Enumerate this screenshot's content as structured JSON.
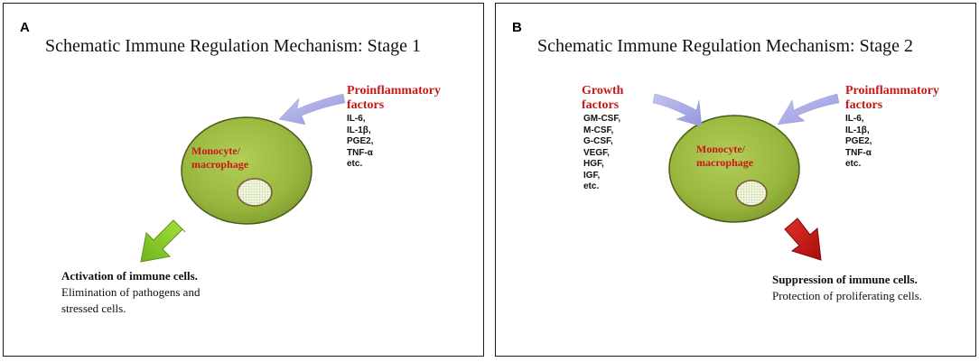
{
  "panels": [
    {
      "letter": "A",
      "title": "Schematic Immune Regulation Mechanism: Stage 1",
      "cell_label": {
        "main": "Monocyte",
        "slash": "/",
        "line2": "macrophage"
      },
      "proinflammatory": {
        "heading": [
          "Proinflammatory",
          "factors"
        ],
        "items": [
          "IL-6,",
          "IL-1β,",
          "PGE2,",
          "TNF-α",
          "etc."
        ]
      },
      "outcome": {
        "bold": "Activation of immune cells.",
        "lines": [
          "Elimination of pathogens and",
          "stressed cells."
        ]
      },
      "arrow_color": "#8fd12c"
    },
    {
      "letter": "B",
      "title": "Schematic Immune Regulation Mechanism: Stage 2",
      "cell_label": {
        "main": "Monocyte",
        "slash": "/",
        "line2": "macrophage"
      },
      "growth": {
        "heading": [
          "Growth",
          "factors"
        ],
        "items": [
          "GM-CSF,",
          "M-CSF,",
          "G-CSF,",
          "VEGF,",
          "HGF,",
          "IGF,",
          "etc."
        ]
      },
      "proinflammatory": {
        "heading": [
          "Proinflammatory",
          "factors"
        ],
        "items": [
          "IL-6,",
          "IL-1β,",
          "PGE2,",
          "TNF-α",
          "etc."
        ]
      },
      "outcome": {
        "bold": "Suppression of immune cells.",
        "lines": [
          "Protection of proliferating cells."
        ]
      },
      "arrow_color": "#c8140e"
    }
  ],
  "colors": {
    "cell_fill": "#9ab83e",
    "cell_stroke": "#4a5a18",
    "nucleus_fill": "#e4efc8",
    "input_arrow": "#a7a8e6",
    "heading_red": "#c81818"
  }
}
